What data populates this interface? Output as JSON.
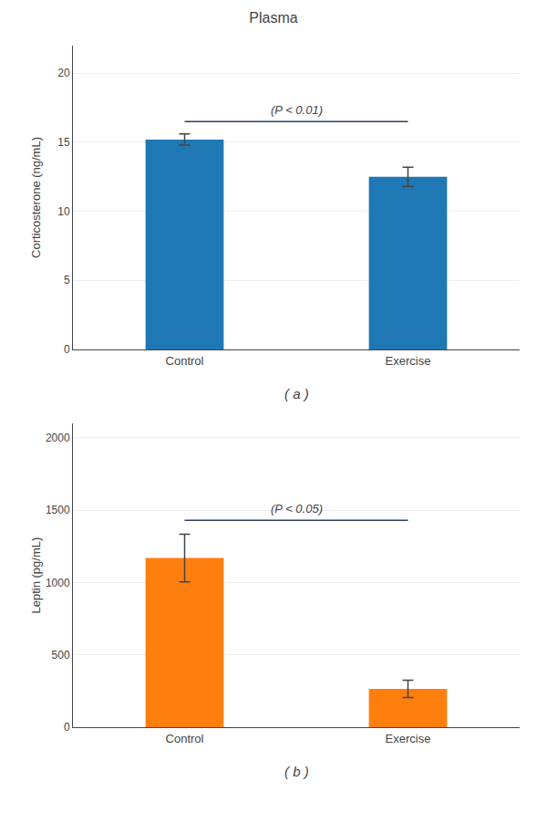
{
  "chart_data": [
    {
      "type": "bar",
      "title": "Plasma",
      "categories": [
        "Control",
        "Exercise"
      ],
      "values": [
        15.2,
        12.5
      ],
      "errors": [
        0.4,
        0.7
      ],
      "ylabel": "Corticosterone (ng/mL)",
      "ylim": [
        0,
        22
      ],
      "yticks": [
        0,
        5,
        10,
        15,
        20
      ],
      "grid": true,
      "bracket": {
        "y": 16.5,
        "from": "Control",
        "to": "Exercise",
        "label": "(P < 0.01)"
      },
      "caption": "( a )"
    },
    {
      "type": "bar",
      "categories": [
        "Control",
        "Exercise"
      ],
      "values": [
        1170,
        265
      ],
      "errors": [
        165,
        60
      ],
      "ylabel": "Leptin (pg/mL)",
      "ylim": [
        0,
        2100
      ],
      "yticks": [
        0,
        500,
        1000,
        1500,
        2000
      ],
      "grid": true,
      "bracket": {
        "y": 1430,
        "from": "Control",
        "to": "Exercise",
        "label": "(P < 0.05)"
      },
      "caption": "( b )"
    }
  ]
}
